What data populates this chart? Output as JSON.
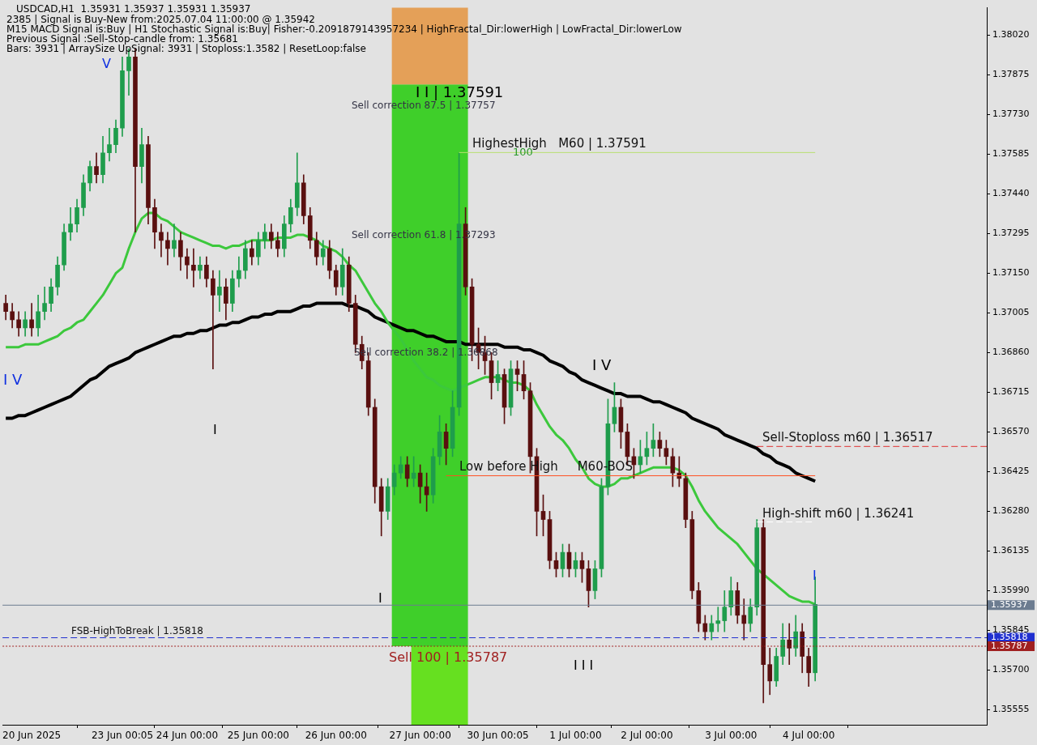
{
  "chart_data": {
    "type": "candlestick",
    "categories": [
      null,
      null,
      null,
      null,
      "20 Jun 2025",
      null,
      null,
      null,
      null,
      null,
      null,
      null,
      null,
      null,
      null,
      null,
      null,
      null,
      "23 Jun 00:05",
      null,
      null,
      null,
      null,
      null,
      null,
      null,
      null,
      null,
      "24 Jun 00:00",
      null,
      null,
      null,
      null,
      null,
      null,
      null,
      null,
      null,
      null,
      "25 Jun 00:00",
      null,
      null,
      null,
      null,
      null,
      null,
      null,
      null,
      null,
      null,
      null,
      "26 Jun 00:00",
      null,
      null,
      null,
      null,
      null,
      null,
      null,
      null,
      null,
      null,
      null,
      null,
      "27 Jun 00:00",
      null,
      null,
      null,
      null,
      null,
      null,
      null,
      null,
      null,
      null,
      null,
      "30 Jun 00:05",
      null,
      null,
      null,
      null,
      null,
      null,
      null,
      null,
      null,
      null,
      null,
      "1 Jul 00:00",
      null,
      null,
      null,
      null,
      null,
      null,
      null,
      null,
      null,
      null,
      "2 Jul 00:00",
      null,
      null,
      null,
      null,
      null,
      null,
      null,
      null,
      null,
      null,
      null,
      null,
      "3 Jul 00:00",
      null,
      null,
      null,
      null,
      null,
      null,
      null,
      null,
      null,
      null,
      null,
      "4 Jul 00:00",
      null
    ],
    "ohlc": [
      [
        1.3704,
        1.3707,
        1.3698,
        1.3701
      ],
      [
        1.3701,
        1.3704,
        1.3695,
        1.3698
      ],
      [
        1.3698,
        1.3701,
        1.3692,
        1.3695
      ],
      [
        1.3695,
        1.3701,
        1.3692,
        1.3698
      ],
      [
        1.3698,
        1.3704,
        1.3692,
        1.3695
      ],
      [
        1.3695,
        1.3707,
        1.3692,
        1.3701
      ],
      [
        1.3701,
        1.371,
        1.3698,
        1.3704
      ],
      [
        1.3704,
        1.3713,
        1.3701,
        1.371
      ],
      [
        1.371,
        1.3721,
        1.3707,
        1.3718
      ],
      [
        1.3718,
        1.3733,
        1.3716,
        1.373
      ],
      [
        1.373,
        1.3739,
        1.3727,
        1.3733
      ],
      [
        1.3733,
        1.3742,
        1.373,
        1.3739
      ],
      [
        1.3739,
        1.3751,
        1.3736,
        1.3748
      ],
      [
        1.3748,
        1.3756,
        1.3745,
        1.3754
      ],
      [
        1.3754,
        1.3759,
        1.3748,
        1.3751
      ],
      [
        1.3751,
        1.3765,
        1.3748,
        1.3759
      ],
      [
        1.3759,
        1.3768,
        1.3756,
        1.3762
      ],
      [
        1.3762,
        1.3771,
        1.3759,
        1.3768
      ],
      [
        1.3768,
        1.3794,
        1.3765,
        1.3789
      ],
      [
        1.3789,
        1.3797,
        1.378,
        1.3794
      ],
      [
        1.3794,
        1.3797,
        1.373,
        1.3754
      ],
      [
        1.3754,
        1.3768,
        1.3748,
        1.3762
      ],
      [
        1.3762,
        1.3765,
        1.3733,
        1.3739
      ],
      [
        1.3739,
        1.3742,
        1.3724,
        1.373
      ],
      [
        1.373,
        1.3733,
        1.3721,
        1.3727
      ],
      [
        1.3727,
        1.373,
        1.3718,
        1.3724
      ],
      [
        1.3724,
        1.3733,
        1.3721,
        1.3727
      ],
      [
        1.3727,
        1.373,
        1.3716,
        1.3721
      ],
      [
        1.3721,
        1.3724,
        1.3713,
        1.3718
      ],
      [
        1.3718,
        1.3724,
        1.371,
        1.3716
      ],
      [
        1.3716,
        1.3721,
        1.3713,
        1.3718
      ],
      [
        1.3718,
        1.3721,
        1.371,
        1.3713
      ],
      [
        1.3713,
        1.3716,
        1.368,
        1.3707
      ],
      [
        1.3707,
        1.3716,
        1.3701,
        1.371
      ],
      [
        1.371,
        1.3713,
        1.3698,
        1.3704
      ],
      [
        1.3704,
        1.3716,
        1.3701,
        1.3713
      ],
      [
        1.3713,
        1.3721,
        1.371,
        1.3716
      ],
      [
        1.3716,
        1.3727,
        1.3713,
        1.3724
      ],
      [
        1.3724,
        1.3727,
        1.3718,
        1.3721
      ],
      [
        1.3721,
        1.373,
        1.3718,
        1.3727
      ],
      [
        1.3727,
        1.3733,
        1.3724,
        1.373
      ],
      [
        1.373,
        1.3733,
        1.3724,
        1.3727
      ],
      [
        1.3727,
        1.373,
        1.3721,
        1.3724
      ],
      [
        1.3724,
        1.3736,
        1.3721,
        1.3733
      ],
      [
        1.3733,
        1.3742,
        1.373,
        1.3739
      ],
      [
        1.3739,
        1.3759,
        1.3736,
        1.3748
      ],
      [
        1.3748,
        1.3751,
        1.3733,
        1.3736
      ],
      [
        1.3736,
        1.3739,
        1.3724,
        1.3727
      ],
      [
        1.3727,
        1.373,
        1.3718,
        1.3721
      ],
      [
        1.3721,
        1.3727,
        1.3718,
        1.3724
      ],
      [
        1.3724,
        1.3727,
        1.3713,
        1.3716
      ],
      [
        1.3716,
        1.3718,
        1.3707,
        1.371
      ],
      [
        1.371,
        1.3724,
        1.3707,
        1.3718
      ],
      [
        1.3718,
        1.3721,
        1.3701,
        1.3704
      ],
      [
        1.3704,
        1.3707,
        1.3686,
        1.3689
      ],
      [
        1.3689,
        1.3692,
        1.368,
        1.3683
      ],
      [
        1.3683,
        1.3686,
        1.3663,
        1.3666
      ],
      [
        1.3666,
        1.3669,
        1.3631,
        1.3637
      ],
      [
        1.3637,
        1.364,
        1.3619,
        1.3628
      ],
      [
        1.3628,
        1.364,
        1.3625,
        1.3637
      ],
      [
        1.3637,
        1.3645,
        1.3634,
        1.3642
      ],
      [
        1.3642,
        1.3648,
        1.364,
        1.3645
      ],
      [
        1.3645,
        1.3648,
        1.3637,
        1.364
      ],
      [
        1.364,
        1.3648,
        1.3637,
        1.3642
      ],
      [
        1.3642,
        1.3645,
        1.3631,
        1.3637
      ],
      [
        1.3637,
        1.3642,
        1.3628,
        1.3634
      ],
      [
        1.3634,
        1.3651,
        1.3631,
        1.3648
      ],
      [
        1.3648,
        1.3663,
        1.3645,
        1.3657
      ],
      [
        1.3657,
        1.366,
        1.3645,
        1.3651
      ],
      [
        1.3651,
        1.3672,
        1.3648,
        1.3666
      ],
      [
        1.3666,
        1.3759,
        1.3663,
        1.3733
      ],
      [
        1.3733,
        1.3739,
        1.3707,
        1.371
      ],
      [
        1.371,
        1.3713,
        1.3683,
        1.3689
      ],
      [
        1.3689,
        1.3695,
        1.368,
        1.3686
      ],
      [
        1.3686,
        1.3692,
        1.3678,
        1.3683
      ],
      [
        1.3683,
        1.3686,
        1.3669,
        1.3675
      ],
      [
        1.3675,
        1.3683,
        1.3672,
        1.3678
      ],
      [
        1.3678,
        1.368,
        1.366,
        1.3666
      ],
      [
        1.3666,
        1.3683,
        1.3663,
        1.368
      ],
      [
        1.368,
        1.3683,
        1.3672,
        1.3678
      ],
      [
        1.3678,
        1.3683,
        1.3669,
        1.3672
      ],
      [
        1.3672,
        1.3675,
        1.3642,
        1.3648
      ],
      [
        1.3648,
        1.3651,
        1.3619,
        1.3628
      ],
      [
        1.3628,
        1.3634,
        1.3619,
        1.3625
      ],
      [
        1.3625,
        1.3628,
        1.3607,
        1.361
      ],
      [
        1.361,
        1.3613,
        1.3604,
        1.3607
      ],
      [
        1.3607,
        1.3616,
        1.3604,
        1.3613
      ],
      [
        1.3613,
        1.3616,
        1.3604,
        1.3607
      ],
      [
        1.3607,
        1.3613,
        1.3604,
        1.361
      ],
      [
        1.361,
        1.3613,
        1.3602,
        1.3607
      ],
      [
        1.3607,
        1.361,
        1.3593,
        1.3599
      ],
      [
        1.3599,
        1.361,
        1.3596,
        1.3607
      ],
      [
        1.3607,
        1.364,
        1.3604,
        1.3637
      ],
      [
        1.3637,
        1.3669,
        1.3634,
        1.366
      ],
      [
        1.366,
        1.3675,
        1.3657,
        1.3666
      ],
      [
        1.3666,
        1.3669,
        1.3651,
        1.3657
      ],
      [
        1.3657,
        1.366,
        1.3645,
        1.3648
      ],
      [
        1.3648,
        1.3651,
        1.364,
        1.3645
      ],
      [
        1.3645,
        1.3654,
        1.3642,
        1.3648
      ],
      [
        1.3648,
        1.3657,
        1.3645,
        1.3651
      ],
      [
        1.3651,
        1.366,
        1.3648,
        1.3654
      ],
      [
        1.3654,
        1.3657,
        1.3648,
        1.3651
      ],
      [
        1.3651,
        1.3654,
        1.3645,
        1.3648
      ],
      [
        1.3648,
        1.3651,
        1.3637,
        1.3642
      ],
      [
        1.3642,
        1.3648,
        1.3637,
        1.364
      ],
      [
        1.364,
        1.3642,
        1.3622,
        1.3625
      ],
      [
        1.3625,
        1.3628,
        1.3596,
        1.3599
      ],
      [
        1.3599,
        1.3602,
        1.3584,
        1.3587
      ],
      [
        1.3587,
        1.359,
        1.3581,
        1.3584
      ],
      [
        1.3584,
        1.359,
        1.3581,
        1.3587
      ],
      [
        1.3587,
        1.3593,
        1.3584,
        1.3588
      ],
      [
        1.3588,
        1.3599,
        1.3584,
        1.3593
      ],
      [
        1.3593,
        1.3604,
        1.359,
        1.3599
      ],
      [
        1.3599,
        1.3602,
        1.3587,
        1.359
      ],
      [
        1.359,
        1.3596,
        1.3581,
        1.3587
      ],
      [
        1.3587,
        1.3596,
        1.3584,
        1.3593
      ],
      [
        1.3593,
        1.3625,
        1.359,
        1.3622
      ],
      [
        1.3622,
        1.3625,
        1.3558,
        1.3572
      ],
      [
        1.3572,
        1.3578,
        1.3561,
        1.3566
      ],
      [
        1.3566,
        1.3578,
        1.3564,
        1.3575
      ],
      [
        1.3575,
        1.3587,
        1.3572,
        1.3581
      ],
      [
        1.3581,
        1.3587,
        1.3572,
        1.3578
      ],
      [
        1.3578,
        1.359,
        1.3575,
        1.3584
      ],
      [
        1.3584,
        1.3587,
        1.3569,
        1.3575
      ],
      [
        1.3575,
        1.3578,
        1.3564,
        1.3569
      ],
      [
        1.3569,
        1.3604,
        1.3566,
        1.3594
      ]
    ],
    "colors": [
      "#5a1010",
      "#5a1010",
      "#5a1010",
      "#1f9d4c",
      "#5a1010",
      "#1f9d4c",
      "#1f9d4c",
      "#1f9d4c",
      "#1f9d4c",
      "#1f9d4c",
      "#1f9d4c",
      "#1f9d4c",
      "#1f9d4c",
      "#1f9d4c",
      "#5a1010",
      "#1f9d4c",
      "#1f9d4c",
      "#1f9d4c",
      "#1f9d4c",
      "#1f9d4c",
      "#5a1010",
      "#1f9d4c",
      "#5a1010",
      "#5a1010",
      "#5a1010",
      "#5a1010",
      "#1f9d4c",
      "#5a1010",
      "#5a1010",
      "#5a1010",
      "#1f9d4c",
      "#5a1010",
      "#5a1010",
      "#1f9d4c",
      "#5a1010",
      "#1f9d4c",
      "#1f9d4c",
      "#1f9d4c",
      "#5a1010",
      "#1f9d4c",
      "#1f9d4c",
      "#5a1010",
      "#5a1010",
      "#1f9d4c",
      "#1f9d4c",
      "#1f9d4c",
      "#5a1010",
      "#5a1010",
      "#5a1010",
      "#1f9d4c",
      "#5a1010",
      "#5a1010",
      "#1f9d4c",
      "#5a1010",
      "#5a1010",
      "#5a1010",
      "#5a1010",
      "#5a1010",
      "#5a1010",
      "#1f9d4c",
      "#1f9d4c",
      "#1f9d4c",
      "#5a1010",
      "#1f9d4c",
      "#5a1010",
      "#5a1010",
      "#1f9d4c",
      "#1f9d4c",
      "#5a1010",
      "#1f9d4c",
      "#1f9d4c",
      "#5a1010",
      "#5a1010",
      "#5a1010",
      "#5a1010",
      "#5a1010",
      "#1f9d4c",
      "#5a1010",
      "#1f9d4c",
      "#5a1010",
      "#5a1010",
      "#5a1010",
      "#5a1010",
      "#5a1010",
      "#5a1010",
      "#5a1010",
      "#1f9d4c",
      "#5a1010",
      "#1f9d4c",
      "#5a1010",
      "#5a1010",
      "#1f9d4c",
      "#1f9d4c",
      "#1f9d4c",
      "#1f9d4c",
      "#5a1010",
      "#5a1010",
      "#5a1010",
      "#1f9d4c",
      "#1f9d4c",
      "#1f9d4c",
      "#5a1010",
      "#5a1010",
      "#5a1010",
      "#5a1010",
      "#5a1010",
      "#5a1010",
      "#5a1010",
      "#5a1010",
      "#1f9d4c",
      "#1f9d4c",
      "#1f9d4c",
      "#1f9d4c",
      "#5a1010",
      "#5a1010",
      "#1f9d4c",
      "#1f9d4c",
      "#5a1010",
      "#5a1010",
      "#1f9d4c",
      "#1f9d4c",
      "#5a1010",
      "#1f9d4c",
      "#5a1010",
      "#5a1010",
      "#1f9d4c"
    ],
    "series": [
      {
        "type": "line",
        "color": "#3cc83c",
        "values": [
          1.3688,
          1.3688,
          1.3688,
          1.3689,
          1.3689,
          1.3689,
          1.369,
          1.3691,
          1.3692,
          1.3694,
          1.3695,
          1.3697,
          1.3698,
          1.3701,
          1.3704,
          1.3707,
          1.3711,
          1.3715,
          1.3717,
          1.3724,
          1.373,
          1.3735,
          1.3737,
          1.3737,
          1.3735,
          1.3734,
          1.3732,
          1.373,
          1.3729,
          1.3728,
          1.3727,
          1.3726,
          1.3725,
          1.3725,
          1.3724,
          1.3725,
          1.3725,
          1.3726,
          1.3727,
          1.3727,
          1.3727,
          1.3727,
          1.3728,
          1.3728,
          1.3728,
          1.3729,
          1.3729,
          1.3728,
          1.3727,
          1.3725,
          1.3724,
          1.3723,
          1.3721,
          1.3718,
          1.3716,
          1.3712,
          1.3708,
          1.3704,
          1.3701,
          1.3697,
          1.3694,
          1.3691,
          1.3687,
          1.3683,
          1.368,
          1.3677,
          1.3676,
          1.3674,
          1.3673,
          1.3672,
          1.3673,
          1.3674,
          1.3675,
          1.3676,
          1.3677,
          1.3677,
          1.3677,
          1.3676,
          1.3675,
          1.3675,
          1.3674,
          1.3672,
          1.3667,
          1.3663,
          1.3659,
          1.3656,
          1.3654,
          1.3651,
          1.3647,
          1.3644,
          1.364,
          1.3638,
          1.3637,
          1.3637,
          1.3638,
          1.364,
          1.364,
          1.3641,
          1.3642,
          1.3643,
          1.3644,
          1.3644,
          1.3644,
          1.3644,
          1.3643,
          1.3641,
          1.3637,
          1.3632,
          1.3628,
          1.3625,
          1.3622,
          1.362,
          1.3618,
          1.3616,
          1.3613,
          1.361,
          1.3607,
          1.3605,
          1.3603,
          1.3601,
          1.3599,
          1.3597,
          1.3596,
          1.3595,
          1.3595,
          1.3594
        ]
      },
      {
        "type": "line",
        "color": "#000000",
        "values": [
          1.3662,
          1.3662,
          1.3663,
          1.3663,
          1.3664,
          1.3665,
          1.3666,
          1.3667,
          1.3668,
          1.3669,
          1.367,
          1.3672,
          1.3674,
          1.3676,
          1.3677,
          1.3679,
          1.3681,
          1.3682,
          1.3683,
          1.3684,
          1.3686,
          1.3687,
          1.3688,
          1.3689,
          1.369,
          1.3691,
          1.3692,
          1.3692,
          1.3693,
          1.3693,
          1.3694,
          1.3694,
          1.3695,
          1.3696,
          1.3696,
          1.3697,
          1.3697,
          1.3698,
          1.3699,
          1.3699,
          1.37,
          1.37,
          1.3701,
          1.3701,
          1.3701,
          1.3702,
          1.3703,
          1.3703,
          1.3704,
          1.3704,
          1.3704,
          1.3704,
          1.3704,
          1.3703,
          1.3703,
          1.3702,
          1.3701,
          1.3699,
          1.3698,
          1.3697,
          1.3696,
          1.3695,
          1.3694,
          1.3694,
          1.3693,
          1.3692,
          1.3692,
          1.3691,
          1.369,
          1.369,
          1.369,
          1.3689,
          1.3689,
          1.3689,
          1.3689,
          1.3689,
          1.3689,
          1.3688,
          1.3688,
          1.3688,
          1.3687,
          1.3687,
          1.3686,
          1.3685,
          1.3683,
          1.3682,
          1.3681,
          1.3679,
          1.3678,
          1.3676,
          1.3675,
          1.3674,
          1.3673,
          1.3672,
          1.3671,
          1.3671,
          1.367,
          1.367,
          1.367,
          1.3669,
          1.3668,
          1.3668,
          1.3667,
          1.3666,
          1.3665,
          1.3664,
          1.3662,
          1.3661,
          1.366,
          1.3659,
          1.3658,
          1.3656,
          1.3655,
          1.3654,
          1.3653,
          1.3652,
          1.3651,
          1.3649,
          1.3648,
          1.3646,
          1.3645,
          1.3644,
          1.3642,
          1.3641,
          1.364,
          1.3639
        ]
      }
    ],
    "ylim": [
      1.355,
      1.3812
    ],
    "yticks": [
      {
        "value": 1.35555,
        "label": "1.35555"
      },
      {
        "value": 1.357,
        "label": "1.35700"
      },
      {
        "value": 1.35845,
        "label": "1.35845"
      },
      {
        "value": 1.3599,
        "label": "1.35990"
      },
      {
        "value": 1.36135,
        "label": "1.36135"
      },
      {
        "value": 1.3628,
        "label": "1.36280"
      },
      {
        "value": 1.36425,
        "label": "1.36425"
      },
      {
        "value": 1.3657,
        "label": "1.36570"
      },
      {
        "value": 1.36715,
        "label": "1.36715"
      },
      {
        "value": 1.3686,
        "label": "1.36860"
      },
      {
        "value": 1.37005,
        "label": "1.37005"
      },
      {
        "value": 1.3715,
        "label": "1.37150"
      },
      {
        "value": 1.37295,
        "label": "1.37295"
      },
      {
        "value": 1.3744,
        "label": "1.37440"
      },
      {
        "value": 1.37585,
        "label": "1.37585"
      },
      {
        "value": 1.3773,
        "label": "1.37730"
      },
      {
        "value": 1.37875,
        "label": "1.37875"
      },
      {
        "value": 1.3802,
        "label": "1.38020"
      }
    ],
    "ref_lines": [
      {
        "axis": "y",
        "value": 1.35937,
        "color": "#6c7c90",
        "line_style": "solid"
      },
      {
        "axis": "y",
        "value": 1.35818,
        "label": "FSB-HighToBreak | 1.35818",
        "color": "#2030d0",
        "line_style": "dashed"
      },
      {
        "axis": "y",
        "value": 1.35787,
        "label": "Sell 100 | 1.35787",
        "color": "#a02020",
        "line_style": "dotted"
      },
      {
        "axis": "y",
        "value": 1.37591,
        "label": "HighestHigh   M60 | 1.37591",
        "color": "#b8e070",
        "line_style": "solid"
      },
      {
        "axis": "y",
        "value": 1.3641,
        "label": "Low before High     M60-BOS",
        "color": "#ff5020",
        "line_style": "solid"
      },
      {
        "axis": "y",
        "value": 1.36517,
        "label": "Sell-Stoploss m60 | 1.36517",
        "color": "#e03030",
        "line_style": "dashed"
      },
      {
        "axis": "y",
        "value": 1.36241,
        "label": "High-shift m60 | 1.36241",
        "color": "#ffffff",
        "line_style": "dashed"
      }
    ],
    "bands": [
      {
        "axis": "y",
        "from": 1.35787,
        "to": 1.3784,
        "color": "#3fcf2a"
      },
      {
        "axis": "y",
        "from": 1.3784,
        "to": 1.3812,
        "color": "#e4a058"
      },
      {
        "axis": "y",
        "from": 1.355,
        "to": 1.35787,
        "color": "#66e020"
      }
    ],
    "annotations": [
      "USDCAD,H1  1.35931 1.35937 1.35931 1.35937",
      "2385 | Signal is Buy-New from:2025.07.04 11:00:00 @ 1.35942",
      "M15 MACD Signal is:Buy | H1 Stochastic Signal is:Buy| Fisher:-0.2091879143957234 | HighFractal_Dir:lowerHigh | LowFractal_Dir:lowerLow",
      "Previous Signal :Sell-Stop-candle from: 1.35681",
      "Bars: 3931 | ArraySize UpSignal: 3931 | Stoploss:1.3582 | ResetLoop:false",
      "I I | 1.37591",
      "Sell correction 87.5 | 1.37757",
      "100",
      "Sell correction 61.8 | 1.37293",
      "Sell correction 38.2 | 1.36868",
      "I V",
      "I V",
      "I",
      "I",
      "I I I",
      "V",
      "I",
      "1.35937",
      "1.35818",
      "1.35787"
    ],
    "grid": false,
    "legend": false,
    "marker": "none"
  }
}
